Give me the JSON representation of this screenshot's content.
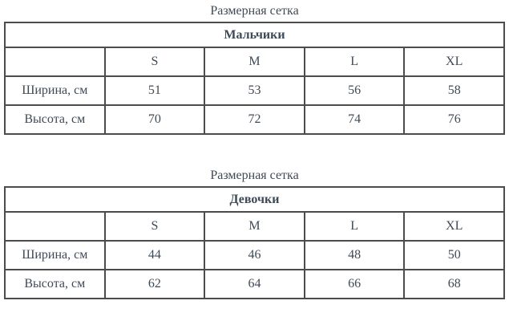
{
  "colors": {
    "text": "#3f4a57",
    "border": "#4c4c4c",
    "background": "#ffffff"
  },
  "sections": [
    {
      "title": "Размерная сетка",
      "group": "Мальчики",
      "sizes": [
        "S",
        "M",
        "L",
        "XL"
      ],
      "rows": [
        {
          "label": "Ширина, см",
          "values": [
            "51",
            "53",
            "56",
            "58"
          ]
        },
        {
          "label": "Высота, см",
          "values": [
            "70",
            "72",
            "74",
            "76"
          ]
        }
      ]
    },
    {
      "title": "Размерная сетка",
      "group": "Девочки",
      "sizes": [
        "S",
        "M",
        "L",
        "XL"
      ],
      "rows": [
        {
          "label": "Ширина, см",
          "values": [
            "44",
            "46",
            "48",
            "50"
          ]
        },
        {
          "label": "Высота, см",
          "values": [
            "62",
            "64",
            "66",
            "68"
          ]
        }
      ]
    }
  ]
}
